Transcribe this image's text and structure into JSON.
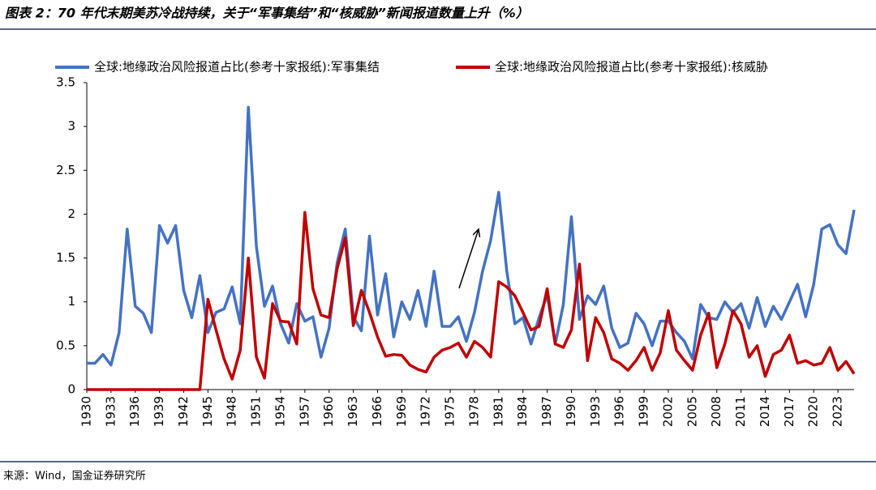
{
  "chart_data": {
    "type": "line",
    "title": "图表 2：70 年代末期美苏冷战持续，关于“军事集结”和“核威胁”新闻报道数量上升（%）",
    "source": "来源：Wind，国金证券研究所",
    "x": [
      1930,
      1931,
      1932,
      1933,
      1934,
      1935,
      1936,
      1937,
      1938,
      1939,
      1940,
      1941,
      1942,
      1943,
      1944,
      1945,
      1946,
      1947,
      1948,
      1949,
      1950,
      1951,
      1952,
      1953,
      1954,
      1955,
      1956,
      1957,
      1958,
      1959,
      1960,
      1961,
      1962,
      1963,
      1964,
      1965,
      1966,
      1967,
      1968,
      1969,
      1970,
      1971,
      1972,
      1973,
      1974,
      1975,
      1976,
      1977,
      1978,
      1979,
      1980,
      1981,
      1982,
      1983,
      1984,
      1985,
      1986,
      1987,
      1988,
      1989,
      1990,
      1991,
      1992,
      1993,
      1994,
      1995,
      1996,
      1997,
      1998,
      1999,
      2000,
      2001,
      2002,
      2003,
      2004,
      2005,
      2006,
      2007,
      2008,
      2009,
      2010,
      2011,
      2012,
      2013,
      2014,
      2015,
      2016,
      2017,
      2018,
      2019,
      2020,
      2021,
      2022,
      2023,
      2024,
      2025
    ],
    "series": [
      {
        "name": "全球:地缘政治风险报道占比(参考十家报纸):军事集结",
        "color": "#4472c4",
        "values": [
          0.3,
          0.3,
          0.4,
          0.28,
          0.65,
          1.83,
          0.95,
          0.87,
          0.65,
          1.87,
          1.67,
          1.87,
          1.13,
          0.82,
          1.3,
          0.65,
          0.88,
          0.92,
          1.17,
          0.75,
          3.22,
          1.63,
          0.95,
          1.18,
          0.75,
          0.53,
          0.98,
          0.78,
          0.83,
          0.37,
          0.7,
          1.45,
          1.83,
          0.83,
          0.67,
          1.75,
          0.85,
          1.32,
          0.6,
          1.0,
          0.8,
          1.13,
          0.72,
          1.35,
          0.72,
          0.72,
          0.83,
          0.55,
          0.88,
          1.35,
          1.7,
          2.25,
          1.35,
          0.75,
          0.82,
          0.52,
          0.82,
          1.08,
          0.52,
          0.97,
          1.97,
          0.8,
          1.07,
          0.97,
          1.18,
          0.7,
          0.48,
          0.53,
          0.87,
          0.75,
          0.5,
          0.78,
          0.78,
          0.65,
          0.55,
          0.35,
          0.97,
          0.82,
          0.8,
          1.0,
          0.88,
          0.98,
          0.7,
          1.05,
          0.72,
          0.95,
          0.8,
          1.0,
          1.2,
          0.83,
          1.2,
          1.83,
          1.88,
          1.65,
          1.55,
          2.05
        ]
      },
      {
        "name": "全球:地缘政治风险报道占比(参考十家报纸):核威胁",
        "color": "#c00000",
        "values": [
          0,
          0,
          0,
          0,
          0,
          0,
          0,
          0,
          0,
          0,
          0,
          0,
          0,
          0,
          0,
          1.03,
          0.68,
          0.35,
          0.12,
          0.45,
          1.5,
          0.37,
          0.13,
          0.98,
          0.78,
          0.77,
          0.52,
          2.02,
          1.15,
          0.85,
          0.82,
          1.38,
          1.73,
          0.73,
          1.13,
          0.88,
          0.6,
          0.38,
          0.4,
          0.39,
          0.28,
          0.23,
          0.2,
          0.37,
          0.45,
          0.48,
          0.53,
          0.37,
          0.55,
          0.48,
          0.37,
          1.23,
          1.17,
          1.07,
          0.88,
          0.68,
          0.72,
          1.15,
          0.52,
          0.48,
          0.68,
          1.43,
          0.33,
          0.82,
          0.65,
          0.35,
          0.3,
          0.22,
          0.33,
          0.48,
          0.22,
          0.42,
          0.9,
          0.45,
          0.33,
          0.22,
          0.62,
          0.87,
          0.25,
          0.52,
          0.9,
          0.75,
          0.37,
          0.5,
          0.15,
          0.4,
          0.45,
          0.62,
          0.3,
          0.33,
          0.28,
          0.3,
          0.48,
          0.22,
          0.32,
          0.18
        ]
      }
    ],
    "xlim": [
      1930,
      2025
    ],
    "xticks": [
      1930,
      1933,
      1936,
      1939,
      1942,
      1945,
      1948,
      1951,
      1954,
      1957,
      1960,
      1963,
      1966,
      1969,
      1972,
      1975,
      1978,
      1981,
      1984,
      1987,
      1990,
      1993,
      1996,
      1999,
      2002,
      2005,
      2008,
      2011,
      2014,
      2017,
      2020,
      2023
    ],
    "ylim": [
      0,
      3.5
    ],
    "yticks": [
      0,
      0.5,
      1,
      1.5,
      2,
      2.5,
      3,
      3.5
    ]
  }
}
